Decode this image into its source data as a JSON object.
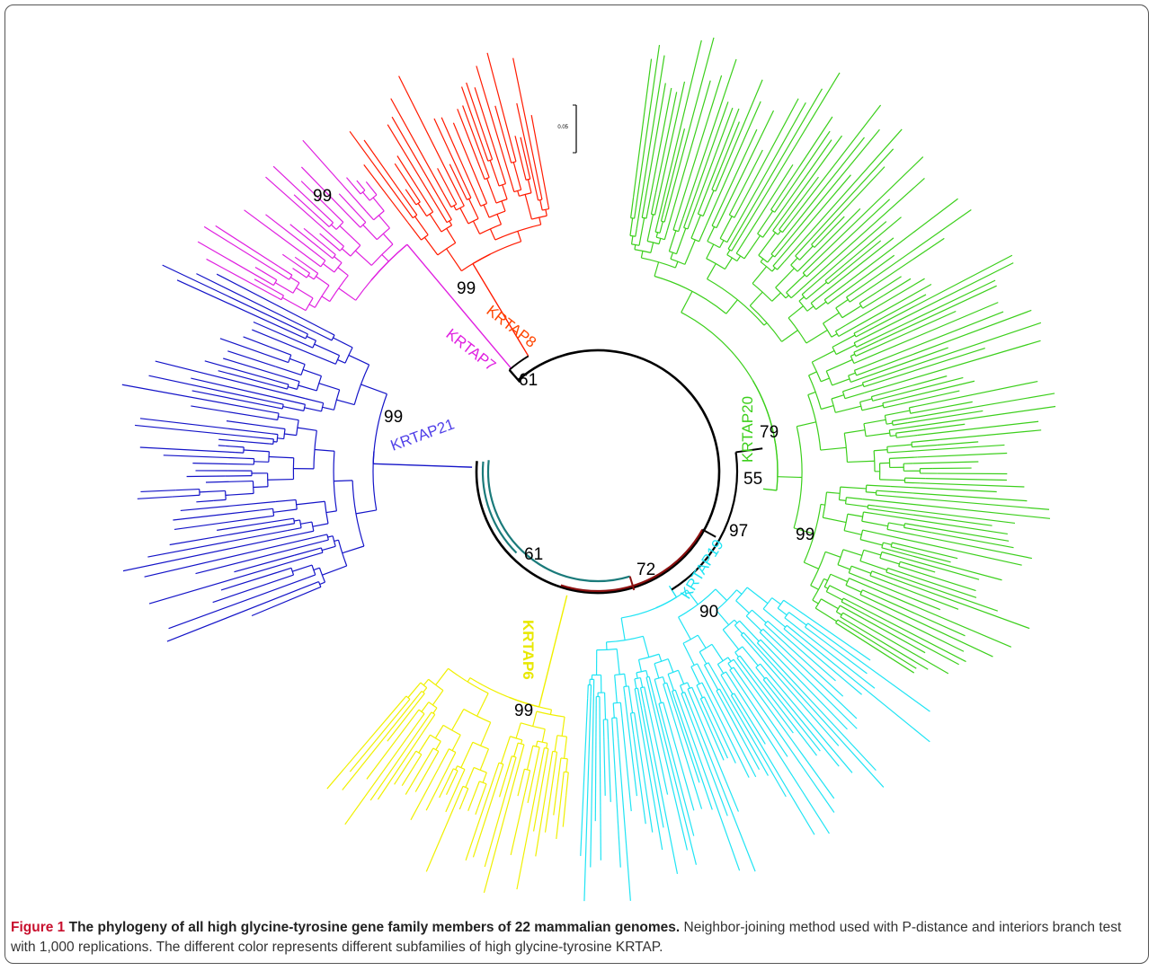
{
  "figure": {
    "clade_labels": [
      "KRTAP8",
      "KRTAP7",
      "KRTAP21",
      "KRTAP20",
      "KRTAP19",
      "KRTAP6"
    ],
    "bootstrap": [
      "99",
      "99",
      "61",
      "99",
      "61",
      "72",
      "79",
      "55",
      "97",
      "99",
      "90",
      "99"
    ],
    "scale_label": "0.05"
  },
  "caption": {
    "label": "Figure 1",
    "title": "The phylogeny of all high glycine-tyrosine gene family members of 22 mammalian genomes.",
    "text": "Neighbor-joining method used with P-distance and interiors branch test with 1,000 replications. The different color represents different subfamilies of high glycine-tyrosine KRTAP."
  }
}
